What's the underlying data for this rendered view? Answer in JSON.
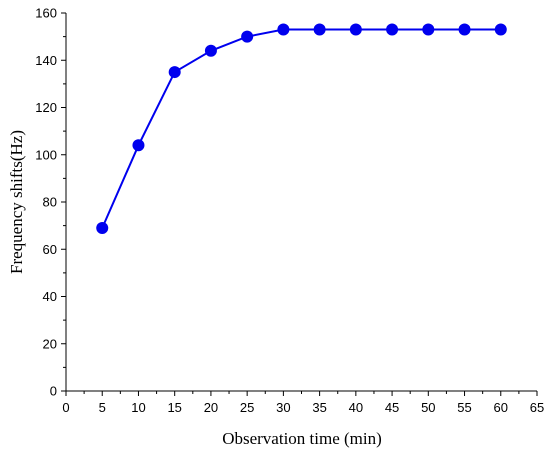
{
  "chart_data": {
    "type": "line",
    "title": "",
    "xlabel": "Observation time (min)",
    "ylabel": "Frequency shifts(Hz)",
    "xlim": [
      0,
      65
    ],
    "ylim": [
      0,
      160
    ],
    "xticks": [
      0,
      5,
      10,
      15,
      20,
      25,
      30,
      35,
      40,
      45,
      50,
      55,
      60,
      65
    ],
    "yticks": [
      0,
      20,
      40,
      60,
      80,
      100,
      120,
      140,
      160
    ],
    "grid": false,
    "legend": "none",
    "series": [
      {
        "color": "#0000ee",
        "marker": "circle",
        "x": [
          5,
          10,
          15,
          20,
          25,
          30,
          35,
          40,
          45,
          50,
          55,
          60
        ],
        "y": [
          69,
          104,
          135,
          144,
          150,
          153,
          153,
          153,
          153,
          153,
          153,
          153
        ]
      }
    ]
  }
}
